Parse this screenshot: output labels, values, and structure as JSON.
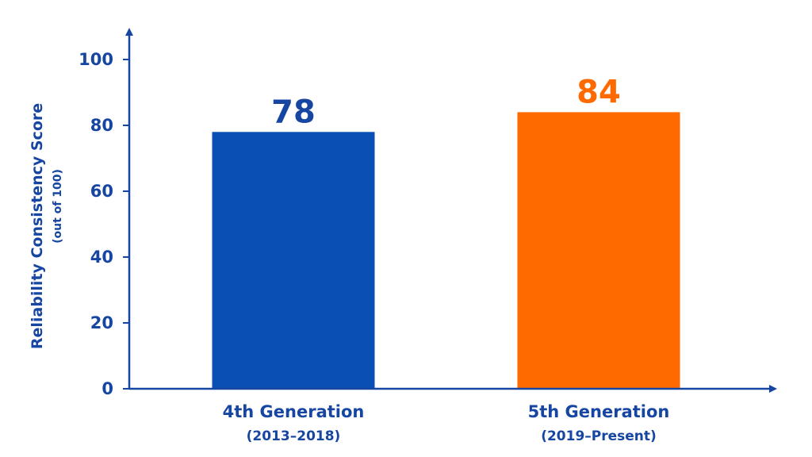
{
  "colors": {
    "axis": "#1746a2",
    "text": "#1746a2"
  },
  "chart_data": {
    "type": "bar",
    "title": "",
    "ylabel": "Reliability Consistency Score",
    "ylabel_sub": "(out of 100)",
    "xlabel": "",
    "ylim": [
      0,
      100
    ],
    "yticks": [
      0,
      20,
      40,
      60,
      80,
      100
    ],
    "grid": false,
    "categories": [
      {
        "label": "4th Generation",
        "sublabel": "(2013–2018)",
        "value": 78,
        "value_label": "78",
        "color": "#0a50b4"
      },
      {
        "label": "5th Generation",
        "sublabel": "(2019–Present)",
        "value": 84,
        "value_label": "84",
        "color": "#ff6a00"
      }
    ]
  }
}
